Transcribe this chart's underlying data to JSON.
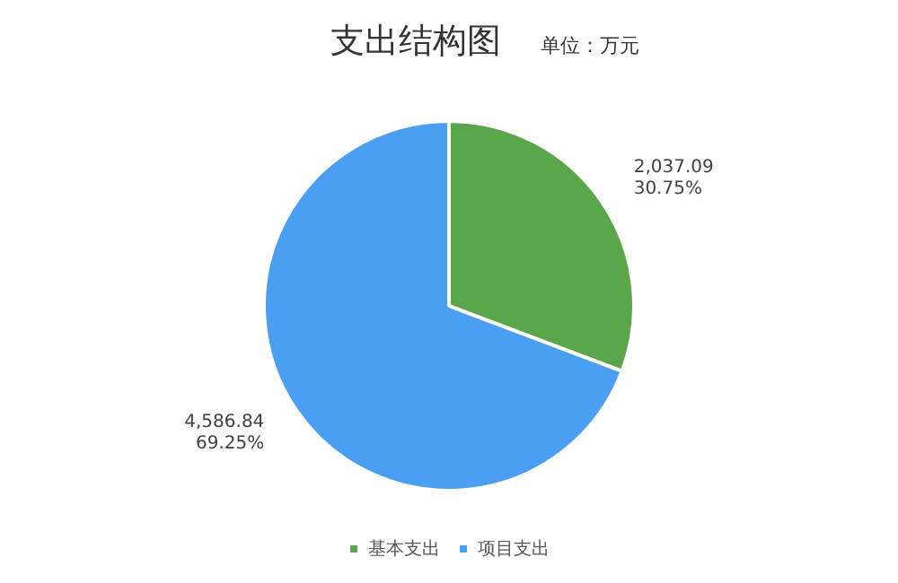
{
  "chart_data": {
    "type": "pie",
    "title": "支出结构图",
    "subtitle": "单位：万元",
    "categories": [
      "基本支出",
      "项目支出"
    ],
    "values": [
      2037.09,
      4586.84
    ],
    "colors": [
      "#5aa64a",
      "#4a9ff2"
    ],
    "value_labels": [
      "2,037.09\n30.75%",
      "4,586.84\n69.25%"
    ],
    "legend": "bottom"
  }
}
